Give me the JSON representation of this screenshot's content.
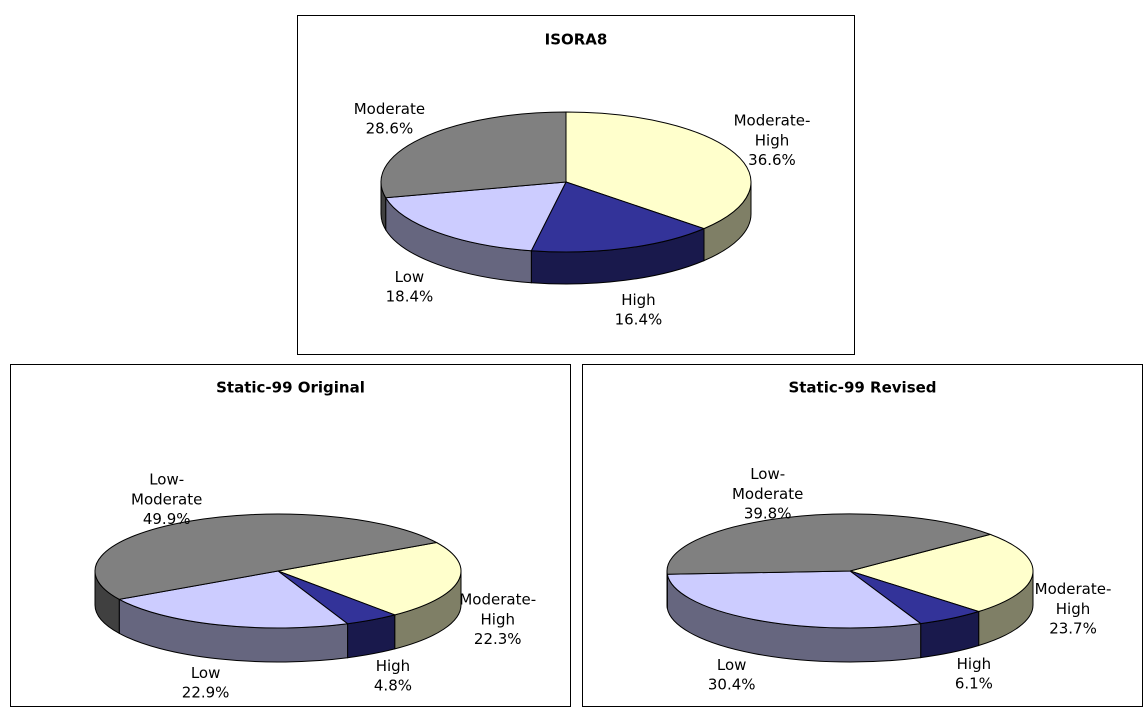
{
  "chart_data": [
    {
      "type": "pie",
      "title": "ISORA8",
      "categories": [
        "Moderate-High",
        "High",
        "Low",
        "Moderate"
      ],
      "values": [
        36.6,
        16.4,
        18.4,
        28.6
      ],
      "value_labels": [
        "36.6%",
        "16.4%",
        "18.4%",
        "28.6%"
      ],
      "colors": [
        "#ffffcc",
        "#333399",
        "#ccccff",
        "#808080"
      ]
    },
    {
      "type": "pie",
      "title": "Static-99 Original",
      "categories": [
        "Moderate-High",
        "High",
        "Low",
        "Low-Moderate"
      ],
      "values": [
        22.3,
        4.8,
        22.9,
        49.9
      ],
      "value_labels": [
        "22.3%",
        "4.8%",
        "22.9%",
        "49.9%"
      ],
      "colors": [
        "#ffffcc",
        "#333399",
        "#ccccff",
        "#808080"
      ]
    },
    {
      "type": "pie",
      "title": "Static-99 Revised",
      "categories": [
        "Moderate-High",
        "High",
        "Low",
        "Low-Moderate"
      ],
      "values": [
        23.7,
        6.1,
        30.4,
        39.8
      ],
      "value_labels": [
        "23.7%",
        "6.1%",
        "30.4%",
        "39.8%"
      ],
      "colors": [
        "#ffffcc",
        "#333399",
        "#ccccff",
        "#808080"
      ]
    }
  ]
}
